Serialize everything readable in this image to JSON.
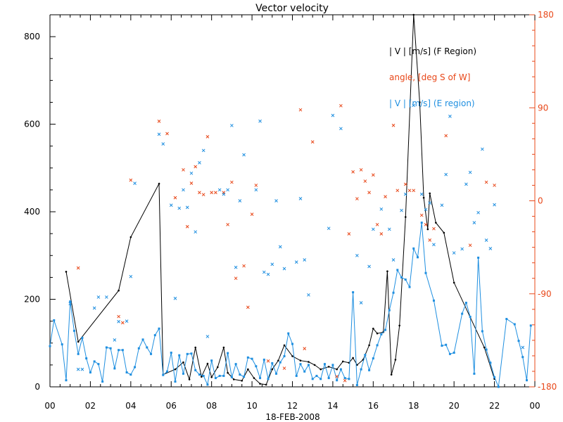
{
  "chart_data": {
    "type": "line",
    "title": "Vector velocity",
    "xlabel": "18-FEB-2008",
    "x_tick_labels": [
      "00",
      "02",
      "04",
      "06",
      "08",
      "10",
      "12",
      "14",
      "16",
      "18",
      "20",
      "22",
      "00"
    ],
    "xlim": [
      0,
      24
    ],
    "ylim_left": [
      0,
      850
    ],
    "ylim_right": [
      -180,
      180
    ],
    "y_left_ticks": [
      0,
      200,
      400,
      600,
      800
    ],
    "y_right_ticks": [
      -180,
      -90,
      0,
      90,
      180
    ],
    "y_right_tick_labels": [
      "-180",
      "-90",
      "0",
      "90",
      "180"
    ],
    "colors": {
      "f_region": "#000000",
      "angle": "#e8481a",
      "e_region": "#1f8fe0"
    },
    "series": [
      {
        "name": "| V | [m/s] (F Region)",
        "style": "line-dot",
        "axis": "left",
        "points": [
          [
            0.8,
            263
          ],
          [
            1.4,
            103
          ],
          [
            3.4,
            220
          ],
          [
            4.0,
            342
          ],
          [
            5.4,
            464
          ],
          [
            5.6,
            28
          ],
          [
            6.2,
            40
          ],
          [
            6.6,
            56
          ],
          [
            6.9,
            17
          ],
          [
            7.2,
            90
          ],
          [
            7.5,
            23
          ],
          [
            7.8,
            53
          ],
          [
            8.0,
            22
          ],
          [
            8.3,
            45
          ],
          [
            8.6,
            90
          ],
          [
            8.8,
            32
          ],
          [
            9.1,
            17
          ],
          [
            9.5,
            14
          ],
          [
            9.8,
            40
          ],
          [
            10.1,
            20
          ],
          [
            10.4,
            7
          ],
          [
            10.7,
            5
          ],
          [
            11.0,
            40
          ],
          [
            11.3,
            60
          ],
          [
            11.6,
            95
          ],
          [
            12.0,
            70
          ],
          [
            12.4,
            60
          ],
          [
            12.8,
            57
          ],
          [
            13.1,
            50
          ],
          [
            13.4,
            40
          ],
          [
            13.8,
            46
          ],
          [
            14.2,
            40
          ],
          [
            14.5,
            58
          ],
          [
            14.8,
            55
          ],
          [
            15.0,
            66
          ],
          [
            15.2,
            50
          ],
          [
            15.5,
            62
          ],
          [
            15.8,
            95
          ],
          [
            16.0,
            133
          ],
          [
            16.2,
            122
          ],
          [
            16.5,
            125
          ],
          [
            16.7,
            264
          ],
          [
            16.9,
            28
          ],
          [
            17.1,
            62
          ],
          [
            17.3,
            140
          ],
          [
            17.6,
            388
          ],
          [
            18.0,
            860
          ],
          [
            18.3,
            650
          ],
          [
            18.5,
            432
          ],
          [
            18.7,
            360
          ],
          [
            18.8,
            442
          ],
          [
            19.1,
            375
          ],
          [
            19.5,
            352
          ],
          [
            20.0,
            238
          ],
          [
            21.5,
            90
          ],
          [
            22.0,
            18
          ]
        ]
      },
      {
        "name": "| V | [m/s] (E region)",
        "style": "line-square",
        "axis": "left",
        "points": [
          [
            0.0,
            93
          ],
          [
            0.2,
            152
          ],
          [
            0.6,
            97
          ],
          [
            0.8,
            15
          ],
          [
            1.0,
            195
          ],
          [
            1.2,
            128
          ],
          [
            1.4,
            75
          ],
          [
            1.6,
            112
          ],
          [
            1.8,
            65
          ],
          [
            2.0,
            33
          ],
          [
            2.2,
            58
          ],
          [
            2.4,
            52
          ],
          [
            2.6,
            12
          ],
          [
            2.8,
            90
          ],
          [
            3.0,
            88
          ],
          [
            3.2,
            42
          ],
          [
            3.4,
            84
          ],
          [
            3.6,
            84
          ],
          [
            3.8,
            33
          ],
          [
            4.0,
            28
          ],
          [
            4.2,
            45
          ],
          [
            4.4,
            88
          ],
          [
            4.6,
            108
          ],
          [
            4.8,
            90
          ],
          [
            5.0,
            75
          ],
          [
            5.2,
            118
          ],
          [
            5.4,
            133
          ],
          [
            5.6,
            27
          ],
          [
            5.8,
            35
          ],
          [
            6.0,
            78
          ],
          [
            6.2,
            12
          ],
          [
            6.4,
            72
          ],
          [
            6.6,
            30
          ],
          [
            6.8,
            75
          ],
          [
            7.0,
            76
          ],
          [
            7.2,
            38
          ],
          [
            7.4,
            28
          ],
          [
            7.6,
            25
          ],
          [
            7.8,
            5
          ],
          [
            8.0,
            60
          ],
          [
            8.2,
            20
          ],
          [
            8.4,
            25
          ],
          [
            8.6,
            25
          ],
          [
            8.8,
            77
          ],
          [
            9.0,
            22
          ],
          [
            9.2,
            52
          ],
          [
            9.4,
            28
          ],
          [
            9.6,
            23
          ],
          [
            9.8,
            67
          ],
          [
            10.0,
            64
          ],
          [
            10.2,
            47
          ],
          [
            10.4,
            20
          ],
          [
            10.6,
            62
          ],
          [
            10.8,
            18
          ],
          [
            11.0,
            54
          ],
          [
            11.2,
            30
          ],
          [
            11.4,
            56
          ],
          [
            11.6,
            70
          ],
          [
            11.8,
            122
          ],
          [
            12.0,
            98
          ],
          [
            12.2,
            25
          ],
          [
            12.4,
            52
          ],
          [
            12.6,
            35
          ],
          [
            12.8,
            50
          ],
          [
            13.0,
            18
          ],
          [
            13.2,
            25
          ],
          [
            13.4,
            18
          ],
          [
            13.6,
            52
          ],
          [
            13.8,
            20
          ],
          [
            14.0,
            50
          ],
          [
            14.2,
            15
          ],
          [
            14.4,
            40
          ],
          [
            14.6,
            20
          ],
          [
            14.8,
            18
          ],
          [
            15.0,
            216
          ],
          [
            15.2,
            4
          ],
          [
            15.4,
            40
          ],
          [
            15.6,
            73
          ],
          [
            15.8,
            38
          ],
          [
            16.0,
            65
          ],
          [
            16.2,
            95
          ],
          [
            16.4,
            120
          ],
          [
            16.6,
            130
          ],
          [
            16.8,
            175
          ],
          [
            17.0,
            215
          ],
          [
            17.2,
            267
          ],
          [
            17.4,
            250
          ],
          [
            17.6,
            245
          ],
          [
            17.8,
            228
          ],
          [
            18.0,
            316
          ],
          [
            18.2,
            296
          ],
          [
            18.4,
            375
          ],
          [
            18.6,
            260
          ],
          [
            19.0,
            197
          ],
          [
            19.4,
            94
          ],
          [
            19.6,
            96
          ],
          [
            19.8,
            75
          ],
          [
            20.0,
            78
          ],
          [
            20.4,
            167
          ],
          [
            20.6,
            192
          ],
          [
            20.8,
            160
          ],
          [
            21.0,
            30
          ],
          [
            21.2,
            295
          ],
          [
            21.4,
            127
          ],
          [
            21.6,
            85
          ],
          [
            21.8,
            55
          ],
          [
            22.0,
            22
          ],
          [
            22.2,
            0
          ],
          [
            22.6,
            155
          ],
          [
            23.0,
            143
          ],
          [
            23.2,
            105
          ],
          [
            23.4,
            68
          ],
          [
            23.6,
            15
          ],
          [
            23.8,
            140
          ]
        ]
      },
      {
        "name": "angle, [deg S of W]",
        "style": "scatter-x",
        "axis": "right",
        "points": [
          [
            1.4,
            -65
          ],
          [
            3.4,
            -112
          ],
          [
            3.6,
            -118
          ],
          [
            4.0,
            20
          ],
          [
            5.4,
            77
          ],
          [
            5.8,
            65
          ],
          [
            6.2,
            3
          ],
          [
            6.6,
            30
          ],
          [
            6.8,
            -25
          ],
          [
            7.0,
            17
          ],
          [
            7.2,
            33
          ],
          [
            7.4,
            8
          ],
          [
            7.6,
            6
          ],
          [
            7.8,
            62
          ],
          [
            8.0,
            8
          ],
          [
            8.2,
            8
          ],
          [
            8.6,
            8
          ],
          [
            8.8,
            -23
          ],
          [
            9.0,
            18
          ],
          [
            9.2,
            -75
          ],
          [
            9.6,
            -63
          ],
          [
            9.8,
            -103
          ],
          [
            10.0,
            -13
          ],
          [
            10.2,
            15
          ],
          [
            10.8,
            -155
          ],
          [
            11.6,
            -162
          ],
          [
            12.4,
            88
          ],
          [
            12.6,
            -143
          ],
          [
            13.0,
            57
          ],
          [
            14.2,
            -170
          ],
          [
            14.6,
            -174
          ],
          [
            14.4,
            92
          ],
          [
            14.8,
            -32
          ],
          [
            15.0,
            28
          ],
          [
            15.2,
            2
          ],
          [
            15.4,
            30
          ],
          [
            15.6,
            19
          ],
          [
            15.8,
            8
          ],
          [
            16.0,
            25
          ],
          [
            16.2,
            -23
          ],
          [
            16.4,
            -32
          ],
          [
            16.6,
            4
          ],
          [
            17.0,
            73
          ],
          [
            17.2,
            10
          ],
          [
            17.6,
            16
          ],
          [
            17.8,
            10
          ],
          [
            18.0,
            10
          ],
          [
            18.4,
            -14
          ],
          [
            18.6,
            -23
          ],
          [
            18.8,
            -38
          ],
          [
            19.0,
            -27
          ],
          [
            19.6,
            63
          ],
          [
            20.8,
            -43
          ],
          [
            21.6,
            18
          ],
          [
            22.0,
            15
          ]
        ]
      },
      {
        "name": "E region scatter",
        "style": "scatter-x",
        "axis": "left",
        "points": [
          [
            1.0,
            190
          ],
          [
            1.4,
            40
          ],
          [
            1.6,
            40
          ],
          [
            2.2,
            180
          ],
          [
            2.4,
            205
          ],
          [
            2.8,
            205
          ],
          [
            3.2,
            107
          ],
          [
            3.4,
            149
          ],
          [
            3.8,
            150
          ],
          [
            4.0,
            252
          ],
          [
            4.2,
            465
          ],
          [
            5.4,
            577
          ],
          [
            5.6,
            555
          ],
          [
            6.0,
            415
          ],
          [
            6.2,
            202
          ],
          [
            6.4,
            408
          ],
          [
            6.6,
            450
          ],
          [
            6.8,
            410
          ],
          [
            7.0,
            488
          ],
          [
            7.2,
            354
          ],
          [
            7.4,
            512
          ],
          [
            7.6,
            540
          ],
          [
            7.8,
            115
          ],
          [
            8.4,
            450
          ],
          [
            8.6,
            440
          ],
          [
            8.8,
            450
          ],
          [
            9.0,
            597
          ],
          [
            9.2,
            273
          ],
          [
            9.4,
            425
          ],
          [
            9.6,
            530
          ],
          [
            10.2,
            450
          ],
          [
            10.4,
            607
          ],
          [
            10.6,
            262
          ],
          [
            10.8,
            257
          ],
          [
            11.0,
            280
          ],
          [
            11.2,
            425
          ],
          [
            11.4,
            320
          ],
          [
            11.6,
            270
          ],
          [
            12.2,
            285
          ],
          [
            12.4,
            430
          ],
          [
            12.6,
            290
          ],
          [
            12.8,
            210
          ],
          [
            13.8,
            362
          ],
          [
            14.0,
            620
          ],
          [
            14.4,
            590
          ],
          [
            15.2,
            300
          ],
          [
            15.4,
            192
          ],
          [
            15.8,
            275
          ],
          [
            16.0,
            360
          ],
          [
            16.4,
            406
          ],
          [
            16.8,
            360
          ],
          [
            17.0,
            290
          ],
          [
            17.4,
            403
          ],
          [
            17.6,
            440
          ],
          [
            18.0,
            643
          ],
          [
            18.4,
            440
          ],
          [
            18.6,
            405
          ],
          [
            18.8,
            420
          ],
          [
            19.0,
            325
          ],
          [
            19.4,
            415
          ],
          [
            19.6,
            485
          ],
          [
            19.8,
            618
          ],
          [
            20.0,
            306
          ],
          [
            20.4,
            315
          ],
          [
            20.6,
            463
          ],
          [
            20.8,
            490
          ],
          [
            21.0,
            375
          ],
          [
            21.2,
            398
          ],
          [
            21.4,
            543
          ],
          [
            21.6,
            335
          ],
          [
            21.8,
            316
          ],
          [
            22.0,
            416
          ],
          [
            23.4,
            90
          ]
        ]
      }
    ],
    "legend": [
      {
        "label": "| V |  [m/s]  (F Region)",
        "color": "#000000"
      },
      {
        "label": "angle, [deg S of W]",
        "color": "#e8481a"
      },
      {
        "label": "| V |  [m/s]  (E region)",
        "color": "#1f8fe0"
      }
    ],
    "legend_position": "top-right"
  }
}
